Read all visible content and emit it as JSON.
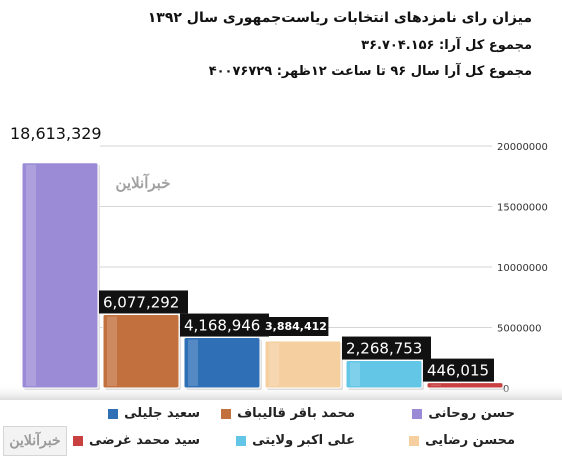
{
  "header": {
    "title": "میزان رای نامزدهای انتخابات ریاست‌جمهوری سال ۱۳۹۲",
    "total_votes": "مجموع کل آرا: ۳۶.۷۰۴.۱۵۶",
    "total_votes_noon": "مجموع کل آرا سال ۹۶ تا ساعت ۱۲ظهر: ۴۰۰۷۶۷۲۹"
  },
  "watermark": "خبرآنلاین",
  "chart_data": {
    "type": "bar",
    "categories": [
      "حسن روحانی",
      "محمد باقر قالیباف",
      "سعید جلیلی",
      "محسن رضایی",
      "علی اکبر ولایتی",
      "سید محمد غرضی"
    ],
    "values": [
      18613329,
      6077292,
      4168946,
      3884412,
      2268753,
      446015
    ],
    "value_labels": [
      "18,613,329",
      "6,077,292",
      "4,168,946",
      "3,884,412",
      "2,268,753",
      "446,015"
    ],
    "colors": [
      "#9b8bd6",
      "#c2703e",
      "#2f6fb6",
      "#f5cfa0",
      "#63c6e6",
      "#c84040"
    ],
    "yticks": [
      {
        "value": 0,
        "label": "0"
      },
      {
        "value": 5000000,
        "label": "5000000"
      },
      {
        "value": 10000000,
        "label": "10000000"
      },
      {
        "value": 15000000,
        "label": "15000000"
      },
      {
        "value": 20000000,
        "label": "20000000"
      }
    ],
    "ylim": [
      0,
      20000000
    ],
    "grid": true,
    "legend_position": "bottom"
  }
}
